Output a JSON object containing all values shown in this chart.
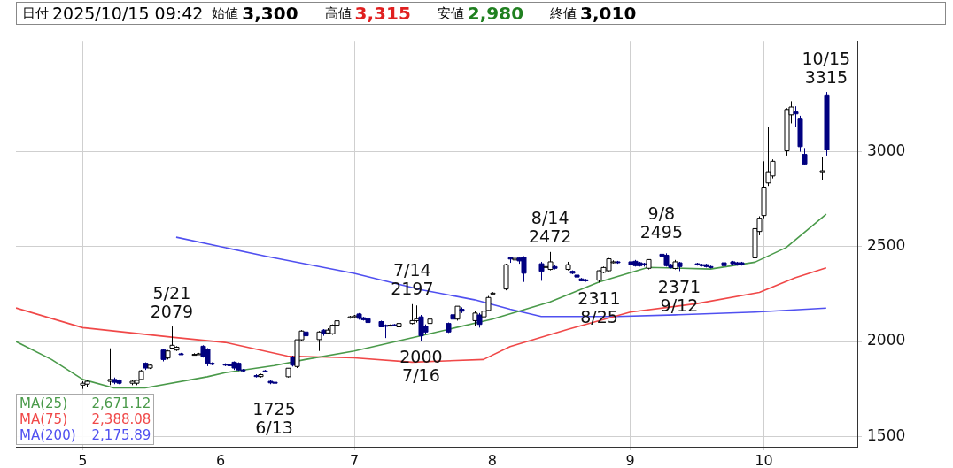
{
  "chart_data": {
    "type": "candlestick",
    "title": "日付 2025/10/15 09:42",
    "annotations": [
      "始値 3,300",
      "高値 3,315",
      "安値 2,980",
      "終値 3,010",
      {
        "text": "5/21\n2079",
        "x": "2025-05-21",
        "y": 2079
      },
      {
        "text": "1725\n6/13",
        "x": "2025-06-13",
        "y": 1725
      },
      {
        "text": "7/14\n2197",
        "x": "2025-07-14",
        "y": 2197
      },
      {
        "text": "2000\n7/16",
        "x": "2025-07-16",
        "y": 2000
      },
      {
        "text": "8/14\n2472",
        "x": "2025-08-14",
        "y": 2472
      },
      {
        "text": "2311\n8/25",
        "x": "2025-08-25",
        "y": 2311
      },
      {
        "text": "9/8\n2495",
        "x": "2025-09-08",
        "y": 2495
      },
      {
        "text": "2371\n9/12",
        "x": "2025-09-12",
        "y": 2371
      },
      {
        "text": "10/15\n3315",
        "x": "2025-10-15",
        "y": 3315
      },
      "2,671.12",
      "2,388.08",
      "2,175.89"
    ],
    "colors": [
      "#ffffff",
      "#ffffff",
      "#ffffff",
      "#000080",
      "#000080",
      "#ffffff",
      "#ffffff",
      "#ffffff",
      "#000080",
      "#ffffff",
      "#000080",
      "#ffffff",
      "#ffffff",
      "#ffffff",
      "#000080",
      "#ffffff",
      "#ffffff",
      "#000080",
      "#000080",
      "#000080",
      "#000080",
      "#000080",
      "#000080",
      "#000080",
      "#000080",
      "#000080",
      "#ffffff",
      "#000080",
      "#000080",
      "#000080",
      "#ffffff",
      "#000080",
      "#ffffff",
      "#ffffff",
      "#000080",
      "#ffffff",
      "#000080",
      "#ffffff",
      "#ffffff",
      "#ffffff",
      "#ffffff",
      "#ffffff",
      "#000080",
      "#000080",
      "#000080",
      "#000080",
      "#000080",
      "#ffffff",
      "#000080",
      "#ffffff",
      "#ffffff",
      "#ffffff",
      "#000080",
      "#000080",
      "#ffffff",
      "#000080",
      "#000080",
      "#ffffff",
      "#000080",
      "#ffffff",
      "#000080",
      "#ffffff",
      "#ffffff",
      "#ffffff",
      "#ffffff",
      "#000080",
      "#ffffff",
      "#000080",
      "#000080",
      "#000080",
      "#ffffff",
      "#ffffff",
      "#000080",
      "#ffffff",
      "#000080",
      "#000080",
      "#000080",
      "#000080",
      "#ffffff",
      "#ffffff",
      "#ffffff",
      "#ffffff",
      "#000080",
      "#000080",
      "#000080",
      "#000080",
      "#000080",
      "#ffffff",
      "#000080",
      "#000080",
      "#000080",
      "#ffffff",
      "#000080",
      "#000080",
      "#000080",
      "#000080",
      "#000080",
      "#000080",
      "#000080",
      "#000080",
      "#000080",
      "#ffffff",
      "#ffffff",
      "#ffffff",
      "#ffffff",
      "#ffffff",
      "#ffffff",
      "#ffffff",
      "#000080",
      "#000080",
      "#000080",
      "#ffffff",
      "#000080"
    ],
    "x": [
      "2025-05-01",
      "2025-05-02",
      "2025-05-07",
      "2025-05-08",
      "2025-05-09",
      "2025-05-12",
      "2025-05-13",
      "2025-05-14",
      "2025-05-15",
      "2025-05-16",
      "2025-05-19",
      "2025-05-20",
      "2025-05-21",
      "2025-05-22",
      "2025-05-23",
      "2025-05-26",
      "2025-05-27",
      "2025-05-28",
      "2025-05-29",
      "2025-05-30",
      "2025-06-02",
      "2025-06-03",
      "2025-06-04",
      "2025-06-05",
      "2025-06-06",
      "2025-06-09",
      "2025-06-10",
      "2025-06-11",
      "2025-06-12",
      "2025-06-13",
      "2025-06-16",
      "2025-06-17",
      "2025-06-18",
      "2025-06-19",
      "2025-06-20",
      "2025-06-23",
      "2025-06-24",
      "2025-06-25",
      "2025-06-26",
      "2025-06-27",
      "2025-06-30",
      "2025-07-01",
      "2025-07-02",
      "2025-07-03",
      "2025-07-04",
      "2025-07-07",
      "2025-07-08",
      "2025-07-09",
      "2025-07-10",
      "2025-07-11",
      "2025-07-14",
      "2025-07-15",
      "2025-07-16",
      "2025-07-17",
      "2025-07-18",
      "2025-07-22",
      "2025-07-23",
      "2025-07-24",
      "2025-07-25",
      "2025-07-28",
      "2025-07-29",
      "2025-07-30",
      "2025-07-31",
      "2025-08-01",
      "2025-08-04",
      "2025-08-05",
      "2025-08-06",
      "2025-08-07",
      "2025-08-08",
      "2025-08-12",
      "2025-08-13",
      "2025-08-14",
      "2025-08-15",
      "2025-08-18",
      "2025-08-19",
      "2025-08-20",
      "2025-08-21",
      "2025-08-22",
      "2025-08-25",
      "2025-08-26",
      "2025-08-27",
      "2025-08-28",
      "2025-08-29",
      "2025-09-01",
      "2025-09-02",
      "2025-09-03",
      "2025-09-04",
      "2025-09-05",
      "2025-09-08",
      "2025-09-09",
      "2025-09-10",
      "2025-09-11",
      "2025-09-12",
      "2025-09-16",
      "2025-09-17",
      "2025-09-18",
      "2025-09-19",
      "2025-09-22",
      "2025-09-24",
      "2025-09-25",
      "2025-09-26",
      "2025-09-29",
      "2025-09-30",
      "2025-10-01",
      "2025-10-02",
      "2025-10-03",
      "2025-10-06",
      "2025-10-07",
      "2025-10-08",
      "2025-10-09",
      "2025-10-10",
      "2025-10-14",
      "2025-10-15"
    ],
    "ohlc": [
      [
        1770,
        1790,
        1750,
        1780
      ],
      [
        1775,
        1795,
        1760,
        1790
      ],
      [
        1790,
        1964,
        1770,
        1800
      ],
      [
        1800,
        1810,
        1775,
        1785
      ],
      [
        1795,
        1800,
        1775,
        1780
      ],
      [
        1780,
        1795,
        1770,
        1790
      ],
      [
        1780,
        1800,
        1770,
        1795
      ],
      [
        1800,
        1850,
        1795,
        1845
      ],
      [
        1885,
        1890,
        1850,
        1860
      ],
      [
        1860,
        1880,
        1855,
        1875
      ],
      [
        1955,
        1960,
        1895,
        1905
      ],
      [
        1913,
        1955,
        1905,
        1950
      ],
      [
        1965,
        2079,
        1960,
        1980
      ],
      [
        1955,
        1975,
        1950,
        1970
      ],
      [
        1935,
        1940,
        1930,
        1932
      ],
      [
        1932,
        1938,
        1928,
        1932
      ],
      [
        1935,
        1940,
        1930,
        1935
      ],
      [
        1975,
        1980,
        1915,
        1920
      ],
      [
        1960,
        1965,
        1870,
        1885
      ],
      [
        1885,
        1890,
        1875,
        1880
      ],
      [
        1880,
        1885,
        1870,
        1877
      ],
      [
        1877,
        1880,
        1870,
        1875
      ],
      [
        1891,
        1895,
        1850,
        1860
      ],
      [
        1885,
        1890,
        1845,
        1850
      ],
      [
        1850,
        1855,
        1840,
        1848
      ],
      [
        1820,
        1827,
        1810,
        1815
      ],
      [
        1815,
        1830,
        1810,
        1825
      ],
      [
        1845,
        1850,
        1840,
        1843
      ],
      [
        1790,
        1795,
        1775,
        1782
      ],
      [
        1785,
        1790,
        1725,
        1780
      ],
      [
        1814,
        1859,
        1810,
        1859
      ],
      [
        1918,
        1925,
        1868,
        1875
      ],
      [
        1868,
        2009,
        1860,
        2009
      ],
      [
        2009,
        2060,
        2000,
        2055
      ],
      [
        2050,
        2060,
        2020,
        2030
      ],
      [
        2010,
        2055,
        1950,
        2050
      ],
      [
        2060,
        2065,
        2030,
        2040
      ],
      [
        2045,
        2070,
        2040,
        2060
      ],
      [
        2041,
        2090,
        2035,
        2086
      ],
      [
        2086,
        2115,
        2080,
        2109
      ],
      [
        2125,
        2135,
        2120,
        2130
      ],
      [
        2130,
        2140,
        2125,
        2135
      ],
      [
        2145,
        2150,
        2115,
        2122
      ],
      [
        2125,
        2130,
        2110,
        2115
      ],
      [
        2120,
        2125,
        2080,
        2100
      ],
      [
        2105,
        2110,
        2075,
        2077
      ],
      [
        2085,
        2090,
        2018,
        2080
      ],
      [
        2086,
        2090,
        2082,
        2086
      ],
      [
        2088,
        2092,
        2080,
        2085
      ],
      [
        2077,
        2100,
        2075,
        2095
      ],
      [
        2095,
        2197,
        2090,
        2110
      ],
      [
        2110,
        2190,
        2100,
        2120
      ],
      [
        2130,
        2140,
        2000,
        2030
      ],
      [
        2080,
        2090,
        2040,
        2050
      ],
      [
        2095,
        2120,
        2090,
        2118
      ],
      [
        2095,
        2100,
        2045,
        2050
      ],
      [
        2141,
        2145,
        2110,
        2118
      ],
      [
        2118,
        2186,
        2110,
        2186
      ],
      [
        2170,
        2180,
        2150,
        2160
      ],
      [
        2110,
        2160,
        2080,
        2150
      ],
      [
        2140,
        2150,
        2073,
        2090
      ],
      [
        2130,
        2200,
        2120,
        2160
      ],
      [
        2164,
        2240,
        2160,
        2232
      ],
      [
        2255,
        2260,
        2250,
        2255
      ],
      [
        2277,
        2410,
        2270,
        2405
      ],
      [
        2441,
        2445,
        2415,
        2435
      ],
      [
        2430,
        2445,
        2420,
        2438
      ],
      [
        2440,
        2442,
        2410,
        2425
      ],
      [
        2445,
        2450,
        2314,
        2360
      ],
      [
        2410,
        2420,
        2320,
        2370
      ],
      [
        2395,
        2400,
        2390,
        2395
      ],
      [
        2380,
        2472,
        2375,
        2420
      ],
      [
        2395,
        2405,
        2380,
        2386
      ],
      [
        2380,
        2420,
        2375,
        2405
      ],
      [
        2370,
        2375,
        2355,
        2360
      ],
      [
        2350,
        2355,
        2335,
        2340
      ],
      [
        2330,
        2335,
        2318,
        2320
      ],
      [
        2325,
        2330,
        2315,
        2320
      ],
      [
        2323,
        2375,
        2311,
        2373
      ],
      [
        2365,
        2395,
        2360,
        2390
      ],
      [
        2373,
        2440,
        2370,
        2436
      ],
      [
        2420,
        2428,
        2412,
        2420
      ],
      [
        2420,
        2425,
        2410,
        2418
      ],
      [
        2420,
        2425,
        2400,
        2405
      ],
      [
        2423,
        2430,
        2395,
        2400
      ],
      [
        2415,
        2420,
        2395,
        2400
      ],
      [
        2410,
        2415,
        2395,
        2405
      ],
      [
        2386,
        2432,
        2380,
        2432
      ],
      [
        2460,
        2495,
        2445,
        2450
      ],
      [
        2455,
        2465,
        2395,
        2400
      ],
      [
        2405,
        2410,
        2385,
        2390
      ],
      [
        2385,
        2430,
        2380,
        2420
      ],
      [
        2415,
        2420,
        2371,
        2395
      ],
      [
        2410,
        2415,
        2400,
        2405
      ],
      [
        2405,
        2410,
        2395,
        2400
      ],
      [
        2405,
        2410,
        2390,
        2395
      ],
      [
        2395,
        2400,
        2385,
        2390
      ],
      [
        2415,
        2420,
        2395,
        2400
      ],
      [
        2420,
        2425,
        2400,
        2410
      ],
      [
        2415,
        2420,
        2400,
        2405
      ],
      [
        2415,
        2420,
        2400,
        2405
      ],
      [
        2441,
        2745,
        2430,
        2595
      ],
      [
        2580,
        2660,
        2560,
        2650
      ],
      [
        2664,
        2950,
        2650,
        2814
      ],
      [
        2836,
        3130,
        2820,
        2895
      ],
      [
        2873,
        2960,
        2860,
        2950
      ],
      [
        3005,
        3230,
        2980,
        3223
      ],
      [
        3195,
        3267,
        3150,
        3236
      ],
      [
        3210,
        3240,
        3130,
        3200
      ],
      [
        3177,
        3190,
        3000,
        3027
      ],
      [
        2986,
        3020,
        2930,
        2936
      ],
      [
        2895,
        2973,
        2850,
        2900
      ],
      [
        3300,
        3315,
        2980,
        3010
      ]
    ],
    "series": [
      {
        "name": "MA(25)",
        "type": "line",
        "color": "#4a9a4a",
        "x": [
          "2025-04-16",
          "2025-04-24",
          "2025-05-01",
          "2025-05-08",
          "2025-05-15",
          "2025-05-29",
          "2025-06-02",
          "2025-06-13",
          "2025-06-20",
          "2025-07-01",
          "2025-07-16",
          "2025-08-01",
          "2025-08-14",
          "2025-08-25",
          "2025-09-05",
          "2025-09-19",
          "2025-09-29",
          "2025-10-06",
          "2025-10-15"
        ],
        "values": [
          2000,
          1905,
          1800,
          1755,
          1755,
          1814,
          1836,
          1873,
          1905,
          1950,
          2030,
          2118,
          2209,
          2314,
          2391,
          2382,
          2418,
          2495,
          2671
        ]
      },
      {
        "name": "MA(75)",
        "type": "line",
        "color": "#f04848",
        "x": [
          "2025-04-16",
          "2025-05-01",
          "2025-05-21",
          "2025-06-02",
          "2025-06-16",
          "2025-07-01",
          "2025-07-14",
          "2025-07-30",
          "2025-08-05",
          "2025-08-18",
          "2025-09-01",
          "2025-09-16",
          "2025-09-30",
          "2025-10-08",
          "2025-10-15"
        ],
        "values": [
          2177,
          2073,
          2023,
          1995,
          1923,
          1914,
          1891,
          1905,
          1973,
          2064,
          2155,
          2200,
          2259,
          2336,
          2388
        ]
      },
      {
        "name": "MA(200)",
        "type": "line",
        "color": "#5050f0",
        "x": [
          "2025-05-22",
          "2025-06-11",
          "2025-07-01",
          "2025-07-16",
          "2025-07-28",
          "2025-08-05",
          "2025-08-12",
          "2025-08-29",
          "2025-09-12",
          "2025-09-29",
          "2025-10-15"
        ],
        "values": [
          2550,
          2450,
          2359,
          2273,
          2220,
          2170,
          2132,
          2132,
          2141,
          2155,
          2176
        ]
      }
    ],
    "xlim": [
      "2025-04-16",
      "2025-10-22"
    ],
    "xticks": [
      {
        "value": "2025-05-01",
        "label": "5"
      },
      {
        "value": "2025-06-01",
        "label": "6"
      },
      {
        "value": "2025-07-01",
        "label": "7"
      },
      {
        "value": "2025-08-01",
        "label": "8"
      },
      {
        "value": "2025-09-01",
        "label": "9"
      },
      {
        "value": "2025-10-01",
        "label": "10"
      }
    ],
    "ylim": [
      1445,
      3585
    ],
    "yticks": [
      1500,
      2000,
      2500,
      3000
    ],
    "grid": true,
    "legend": "bottom left"
  }
}
